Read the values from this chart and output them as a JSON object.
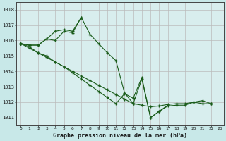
{
  "title": "Graphe pression niveau de la mer (hPa)",
  "bg_color": "#c8e8e8",
  "grid_color": "#aaaaaa",
  "grid_bg": "#d8eeee",
  "line_color": "#1a5c1a",
  "ylim": [
    1010.5,
    1018.5
  ],
  "yticks": [
    1011,
    1012,
    1013,
    1014,
    1015,
    1016,
    1017,
    1018
  ],
  "xlim": [
    -0.5,
    23.5
  ],
  "xticks": [
    0,
    1,
    2,
    3,
    4,
    5,
    6,
    7,
    8,
    9,
    10,
    11,
    12,
    13,
    14,
    15,
    16,
    17,
    18,
    19,
    20,
    21,
    22,
    23
  ],
  "series": [
    {
      "x": [
        0,
        1,
        2,
        3,
        4,
        5,
        6,
        7,
        8,
        9,
        10,
        11,
        12,
        13,
        14,
        15,
        16,
        17
      ],
      "y": [
        1015.8,
        1015.7,
        1015.7,
        1016.1,
        1016.0,
        1016.6,
        1016.5,
        1017.5,
        1016.4,
        1015.8,
        1015.2,
        1014.7,
        1012.6,
        1011.9,
        1013.5,
        1011.0,
        1011.4,
        1011.8
      ]
    },
    {
      "x": [
        0,
        1,
        2,
        3,
        4,
        5,
        6,
        7
      ],
      "y": [
        1015.8,
        1015.7,
        1015.7,
        1016.1,
        1016.6,
        1016.7,
        1016.6,
        1017.5
      ]
    },
    {
      "x": [
        0,
        1,
        2,
        3,
        4,
        5,
        6,
        7,
        8,
        9,
        10,
        11,
        12,
        13,
        14,
        15,
        16,
        17,
        18,
        19,
        20,
        21,
        22
      ],
      "y": [
        1015.8,
        1015.6,
        1015.2,
        1015.0,
        1014.6,
        1014.3,
        1013.9,
        1013.5,
        1013.1,
        1012.7,
        1012.3,
        1011.9,
        1012.55,
        1012.25,
        1013.6,
        1011.0,
        1011.4,
        1011.75,
        1011.8,
        1011.8,
        1012.0,
        1012.1,
        1011.9
      ]
    },
    {
      "x": [
        0,
        1,
        2,
        3,
        4,
        5,
        6,
        7,
        8,
        9,
        10,
        11,
        12,
        13,
        14,
        15,
        16,
        17,
        18,
        19,
        20,
        21,
        22
      ],
      "y": [
        1015.8,
        1015.5,
        1015.2,
        1014.9,
        1014.6,
        1014.3,
        1014.0,
        1013.7,
        1013.4,
        1013.1,
        1012.8,
        1012.5,
        1012.2,
        1011.9,
        1011.8,
        1011.7,
        1011.75,
        1011.85,
        1011.9,
        1011.9,
        1012.0,
        1011.9,
        1011.9
      ]
    }
  ]
}
